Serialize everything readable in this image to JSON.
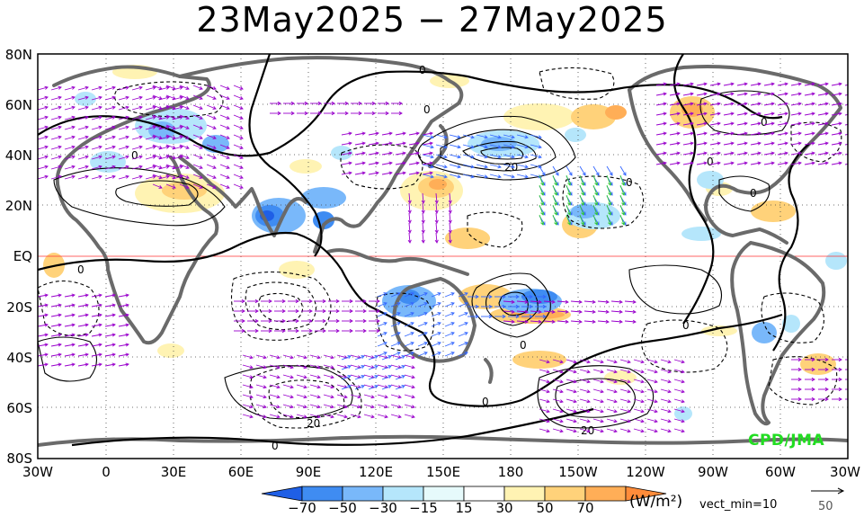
{
  "title": "23May2025 − 27May2025",
  "lat_labels": [
    "80N",
    "60N",
    "40N",
    "20N",
    "EQ",
    "20S",
    "40S",
    "60S",
    "80S"
  ],
  "lon_labels": [
    "30W",
    "0",
    "30E",
    "60E",
    "90E",
    "120E",
    "150E",
    "180",
    "150W",
    "120W",
    "90W",
    "60W",
    "30W"
  ],
  "colorbar": {
    "ticks": [
      "−70",
      "−50",
      "−30",
      "−15",
      "15",
      "30",
      "50",
      "70"
    ],
    "colors": [
      "#1f5fe6",
      "#3f8cf2",
      "#79b8fa",
      "#b5e6fb",
      "#e6fafb",
      "#ffffff",
      "#fff3b3",
      "#ffd27a",
      "#ffae57",
      "#ff8c3a"
    ],
    "units": "(W/m²)"
  },
  "vector_note": "vect_min=10",
  "reference_vector": "50",
  "credit": "CPD/JMA",
  "contour_labels": [
    "0",
    "0",
    "0",
    "0",
    "20",
    "0",
    "0",
    "0",
    "0",
    "0",
    "0",
    "0",
    "20",
    "20",
    "0"
  ],
  "colors": {
    "negative_contour": "#000000",
    "vector_main": "#9900cc",
    "vector_blue": "#3366ff",
    "vector_green": "#33cc33",
    "coast": "#666666",
    "equator": "#ff3333"
  }
}
